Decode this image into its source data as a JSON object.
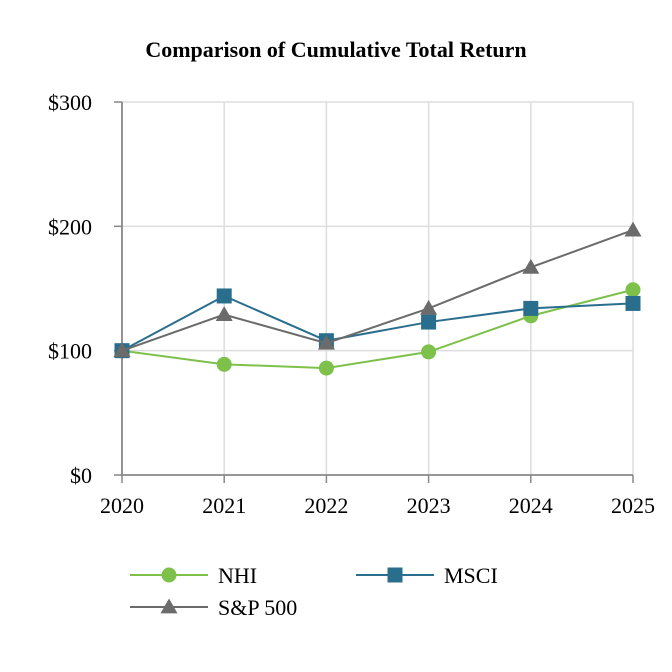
{
  "chart_data": {
    "type": "line",
    "title": "Comparison of Cumulative Total Return",
    "xlabel": "",
    "ylabel": "",
    "x": [
      "2020",
      "2021",
      "2022",
      "2023",
      "2024",
      "2025"
    ],
    "ylim": [
      0,
      300
    ],
    "yticks": [
      0,
      100,
      200,
      300
    ],
    "ytick_labels": [
      "$0",
      "$100",
      "$200",
      "$300"
    ],
    "grid": true,
    "legend_position": "bottom",
    "series": [
      {
        "name": "NHI",
        "values": [
          100,
          89,
          86,
          99,
          128,
          149
        ],
        "color": "#7dc14b",
        "marker": "circle"
      },
      {
        "name": "MSCI",
        "values": [
          100,
          144,
          108,
          123,
          134,
          138
        ],
        "color": "#2a6e8e",
        "marker": "square"
      },
      {
        "name": "S&P 500",
        "values": [
          100,
          129,
          106,
          134,
          167,
          197
        ],
        "color": "#6b6b6b",
        "marker": "triangle"
      }
    ]
  }
}
